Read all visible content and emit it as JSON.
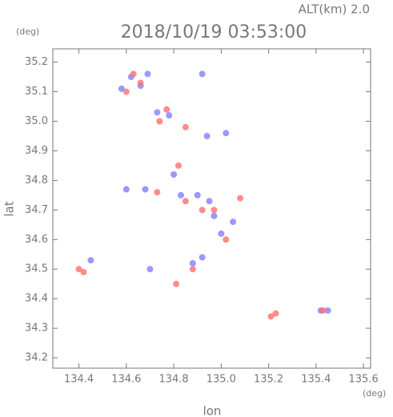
{
  "chart_data": {
    "type": "scatter",
    "header": "ALT(km) 2.0",
    "title": "2018/10/19 03:53:00",
    "y_unit": "(deg)",
    "x_unit": "(deg)",
    "ylabel": "lat",
    "xlabel": "lon",
    "xlim": [
      134.29,
      135.63
    ],
    "ylim": [
      34.165,
      35.245
    ],
    "xticks": [
      134.4,
      134.6,
      134.8,
      {
        "value": 135,
        "label": "135.0"
      },
      135.2,
      135.4,
      135.6
    ],
    "yticks": [
      34.2,
      34.3,
      34.4,
      34.5,
      34.6,
      34.7,
      34.8,
      34.9,
      {
        "value": 35,
        "label": "35.0"
      },
      35.1,
      35.2
    ],
    "series": [
      {
        "name": "blue",
        "color": "#7f7fff",
        "x": [
          134.58,
          134.62,
          134.66,
          134.69,
          134.73,
          134.78,
          134.92,
          134.94,
          135.02,
          134.8,
          134.6,
          134.68,
          134.83,
          134.9,
          134.95,
          134.97,
          135.05,
          135.0,
          134.88,
          134.92,
          134.45,
          135.42,
          135.45,
          134.7
        ],
        "y": [
          35.11,
          35.15,
          35.12,
          35.16,
          35.03,
          35.02,
          35.16,
          34.95,
          34.96,
          34.82,
          34.77,
          34.77,
          34.75,
          34.75,
          34.73,
          34.68,
          34.66,
          34.62,
          34.52,
          34.54,
          34.53,
          34.36,
          34.36,
          34.5
        ]
      },
      {
        "name": "red",
        "color": "#ff6f6f",
        "x": [
          134.63,
          134.66,
          134.6,
          134.74,
          134.77,
          134.85,
          134.82,
          134.73,
          134.85,
          134.92,
          134.97,
          135.02,
          135.08,
          134.88,
          134.81,
          134.4,
          134.42,
          135.21,
          135.23,
          135.43
        ],
        "y": [
          35.16,
          35.13,
          35.1,
          35.0,
          35.04,
          34.98,
          34.85,
          34.76,
          34.73,
          34.7,
          34.7,
          34.6,
          34.74,
          34.5,
          34.45,
          34.5,
          34.49,
          34.34,
          34.35,
          34.36
        ]
      }
    ]
  }
}
